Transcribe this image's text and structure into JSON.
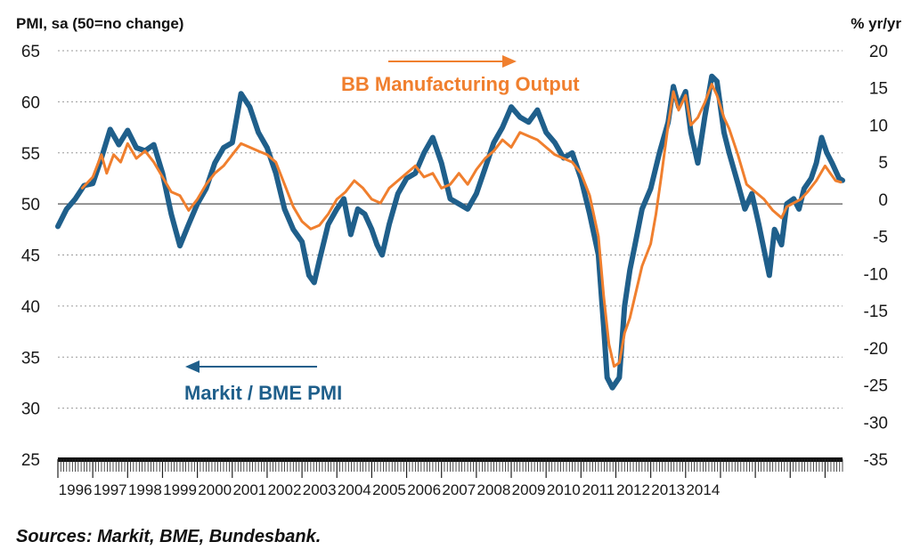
{
  "chart_data": {
    "type": "line",
    "left_axis_title": "PMI, sa (50=no change)",
    "right_axis_title": "% yr/yr",
    "left_ylim": [
      25,
      65
    ],
    "right_ylim": [
      -35,
      20
    ],
    "left_ticks": [
      65,
      60,
      55,
      50,
      45,
      40,
      35,
      30,
      25
    ],
    "right_ticks": [
      20,
      15,
      10,
      5,
      0,
      -5,
      -10,
      -15,
      -20,
      -25,
      -30,
      -35
    ],
    "x_tick_labels": [
      "1996",
      "1997",
      "1998",
      "1999",
      "2000",
      "2001",
      "2002",
      "2003",
      "2004",
      "2005",
      "2006",
      "2007",
      "2008",
      "2009",
      "2010",
      "2011",
      "2012",
      "2013",
      "2014"
    ],
    "reference_line": {
      "axis": "left",
      "value": 50
    },
    "grid": "dotted horizontal",
    "colors": {
      "pmi": "#1f5f8b",
      "output": "#f07f2e",
      "grid": "#9a9a9a"
    },
    "series": [
      {
        "name": "Markit / BME PMI",
        "axis": "left",
        "label": "Markit / BME PMI",
        "arrow_direction": "left",
        "points": [
          [
            1996.0,
            47.8
          ],
          [
            1996.25,
            49.5
          ],
          [
            1996.5,
            50.5
          ],
          [
            1996.75,
            51.8
          ],
          [
            1997.0,
            52.0
          ],
          [
            1997.25,
            54.5
          ],
          [
            1997.5,
            57.3
          ],
          [
            1997.75,
            55.8
          ],
          [
            1998.0,
            57.2
          ],
          [
            1998.25,
            55.5
          ],
          [
            1998.5,
            55.2
          ],
          [
            1998.75,
            55.8
          ],
          [
            1999.0,
            53.0
          ],
          [
            1999.25,
            49.0
          ],
          [
            1999.5,
            45.9
          ],
          [
            1999.75,
            48.0
          ],
          [
            2000.0,
            50.0
          ],
          [
            2000.25,
            51.5
          ],
          [
            2000.5,
            54.0
          ],
          [
            2000.75,
            55.5
          ],
          [
            2001.0,
            56.0
          ],
          [
            2001.25,
            60.8
          ],
          [
            2001.5,
            59.5
          ],
          [
            2001.75,
            57.0
          ],
          [
            2002.0,
            55.5
          ],
          [
            2002.25,
            53.0
          ],
          [
            2002.5,
            49.5
          ],
          [
            2002.75,
            47.5
          ],
          [
            2003.0,
            46.3
          ],
          [
            2003.2,
            43.0
          ],
          [
            2003.35,
            42.3
          ],
          [
            2003.5,
            44.5
          ],
          [
            2003.75,
            48.0
          ],
          [
            2004.0,
            49.5
          ],
          [
            2004.2,
            50.5
          ],
          [
            2004.4,
            47.0
          ],
          [
            2004.6,
            49.5
          ],
          [
            2004.8,
            49.0
          ],
          [
            2005.0,
            47.5
          ],
          [
            2005.15,
            46.0
          ],
          [
            2005.3,
            45.0
          ],
          [
            2005.5,
            48.0
          ],
          [
            2005.75,
            51.0
          ],
          [
            2006.0,
            52.5
          ],
          [
            2006.25,
            53.0
          ],
          [
            2006.5,
            55.0
          ],
          [
            2006.75,
            56.5
          ],
          [
            2007.0,
            54.0
          ],
          [
            2007.25,
            50.5
          ],
          [
            2007.5,
            50.0
          ],
          [
            2007.75,
            49.5
          ],
          [
            2008.0,
            51.0
          ],
          [
            2008.25,
            53.5
          ],
          [
            2008.5,
            56.0
          ],
          [
            2008.75,
            57.5
          ],
          [
            2009.0,
            59.5
          ],
          [
            2009.25,
            58.5
          ],
          [
            2009.5,
            58.0
          ],
          [
            2009.75,
            59.2
          ],
          [
            2010.0,
            57.0
          ],
          [
            2010.25,
            56.0
          ],
          [
            2010.5,
            54.5
          ],
          [
            2010.75,
            55.0
          ],
          [
            2011.0,
            52.5
          ],
          [
            2011.25,
            49.0
          ],
          [
            2011.5,
            45.0
          ],
          [
            2011.65,
            38.0
          ],
          [
            2011.75,
            33.0
          ],
          [
            2011.9,
            32.0
          ],
          [
            2012.1,
            33.0
          ],
          [
            2012.25,
            40.0
          ],
          [
            2012.4,
            43.5
          ],
          [
            2012.55,
            46.0
          ],
          [
            2012.75,
            49.5
          ],
          [
            2013.0,
            51.5
          ],
          [
            2013.25,
            55.0
          ],
          [
            2013.5,
            58.0
          ],
          [
            2013.65,
            61.5
          ],
          [
            2013.8,
            59.5
          ],
          [
            2014.0,
            61.0
          ],
          [
            2014.15,
            57.0
          ],
          [
            2014.35,
            54.0
          ],
          [
            2014.55,
            58.5
          ],
          [
            2014.75,
            62.5
          ],
          [
            2014.9,
            62.0
          ],
          [
            2015.1,
            57.0
          ],
          [
            2015.25,
            55.0
          ],
          [
            2015.5,
            52.0
          ],
          [
            2015.7,
            49.5
          ],
          [
            2015.9,
            51.0
          ],
          [
            2016.1,
            48.0
          ],
          [
            2016.25,
            45.5
          ],
          [
            2016.4,
            43.0
          ],
          [
            2016.55,
            47.5
          ],
          [
            2016.75,
            46.0
          ],
          [
            2016.9,
            50.0
          ],
          [
            2017.1,
            50.5
          ],
          [
            2017.25,
            49.5
          ],
          [
            2017.4,
            51.5
          ],
          [
            2017.6,
            52.5
          ],
          [
            2017.75,
            54.0
          ],
          [
            2017.9,
            56.5
          ],
          [
            2018.05,
            55.0
          ],
          [
            2018.2,
            54.0
          ],
          [
            2018.4,
            52.5
          ],
          [
            2018.5,
            52.3
          ]
        ]
      },
      {
        "name": "BB Manufacturing Output",
        "axis": "right",
        "label": "BB Manufacturing Output",
        "arrow_direction": "right",
        "points": [
          [
            1996.7,
            1.5
          ],
          [
            1997.0,
            3.0
          ],
          [
            1997.25,
            6.0
          ],
          [
            1997.4,
            3.5
          ],
          [
            1997.6,
            6.0
          ],
          [
            1997.8,
            5.0
          ],
          [
            1998.0,
            7.5
          ],
          [
            1998.25,
            5.5
          ],
          [
            1998.5,
            6.5
          ],
          [
            1998.75,
            5.0
          ],
          [
            1999.0,
            3.0
          ],
          [
            1999.25,
            1.0
          ],
          [
            1999.5,
            0.5
          ],
          [
            1999.75,
            -1.5
          ],
          [
            2000.0,
            0.0
          ],
          [
            2000.25,
            2.0
          ],
          [
            2000.5,
            3.5
          ],
          [
            2000.75,
            4.5
          ],
          [
            2001.0,
            6.0
          ],
          [
            2001.25,
            7.5
          ],
          [
            2001.5,
            7.0
          ],
          [
            2001.75,
            6.5
          ],
          [
            2002.0,
            6.0
          ],
          [
            2002.25,
            5.0
          ],
          [
            2002.5,
            2.0
          ],
          [
            2002.75,
            -1.0
          ],
          [
            2003.0,
            -3.0
          ],
          [
            2003.25,
            -4.0
          ],
          [
            2003.5,
            -3.5
          ],
          [
            2003.75,
            -2.0
          ],
          [
            2004.0,
            0.0
          ],
          [
            2004.25,
            1.0
          ],
          [
            2004.5,
            2.5
          ],
          [
            2004.75,
            1.5
          ],
          [
            2005.0,
            0.0
          ],
          [
            2005.25,
            -0.5
          ],
          [
            2005.5,
            1.5
          ],
          [
            2005.75,
            2.5
          ],
          [
            2006.0,
            3.5
          ],
          [
            2006.25,
            4.5
          ],
          [
            2006.5,
            3.0
          ],
          [
            2006.75,
            3.5
          ],
          [
            2007.0,
            1.5
          ],
          [
            2007.25,
            2.0
          ],
          [
            2007.5,
            3.5
          ],
          [
            2007.75,
            2.0
          ],
          [
            2008.0,
            4.0
          ],
          [
            2008.25,
            5.5
          ],
          [
            2008.5,
            6.5
          ],
          [
            2008.75,
            8.0
          ],
          [
            2009.0,
            7.0
          ],
          [
            2009.25,
            9.0
          ],
          [
            2009.5,
            8.5
          ],
          [
            2009.75,
            8.0
          ],
          [
            2010.0,
            7.0
          ],
          [
            2010.25,
            6.0
          ],
          [
            2010.5,
            5.5
          ],
          [
            2010.75,
            5.0
          ],
          [
            2011.0,
            3.5
          ],
          [
            2011.25,
            0.5
          ],
          [
            2011.5,
            -5.0
          ],
          [
            2011.65,
            -13.0
          ],
          [
            2011.8,
            -19.5
          ],
          [
            2011.95,
            -22.5
          ],
          [
            2012.1,
            -22.0
          ],
          [
            2012.25,
            -18.0
          ],
          [
            2012.4,
            -16.0
          ],
          [
            2012.6,
            -12.0
          ],
          [
            2012.75,
            -9.0
          ],
          [
            2013.0,
            -6.0
          ],
          [
            2013.15,
            -2.0
          ],
          [
            2013.3,
            3.0
          ],
          [
            2013.5,
            10.0
          ],
          [
            2013.65,
            14.5
          ],
          [
            2013.8,
            12.0
          ],
          [
            2014.0,
            14.0
          ],
          [
            2014.15,
            10.0
          ],
          [
            2014.35,
            11.0
          ],
          [
            2014.55,
            13.0
          ],
          [
            2014.75,
            15.5
          ],
          [
            2014.9,
            14.0
          ],
          [
            2015.1,
            11.0
          ],
          [
            2015.25,
            9.5
          ],
          [
            2015.5,
            6.0
          ],
          [
            2015.75,
            2.0
          ],
          [
            2016.0,
            1.0
          ],
          [
            2016.25,
            0.0
          ],
          [
            2016.5,
            -1.5
          ],
          [
            2016.75,
            -2.5
          ],
          [
            2016.9,
            -1.0
          ],
          [
            2017.1,
            -0.5
          ],
          [
            2017.3,
            0.0
          ],
          [
            2017.5,
            1.0
          ],
          [
            2017.75,
            2.5
          ],
          [
            2018.0,
            4.5
          ],
          [
            2018.15,
            3.5
          ],
          [
            2018.3,
            2.5
          ],
          [
            2018.45,
            2.3
          ]
        ]
      }
    ]
  },
  "source_text": "Sources: Markit, BME, Bundesbank."
}
